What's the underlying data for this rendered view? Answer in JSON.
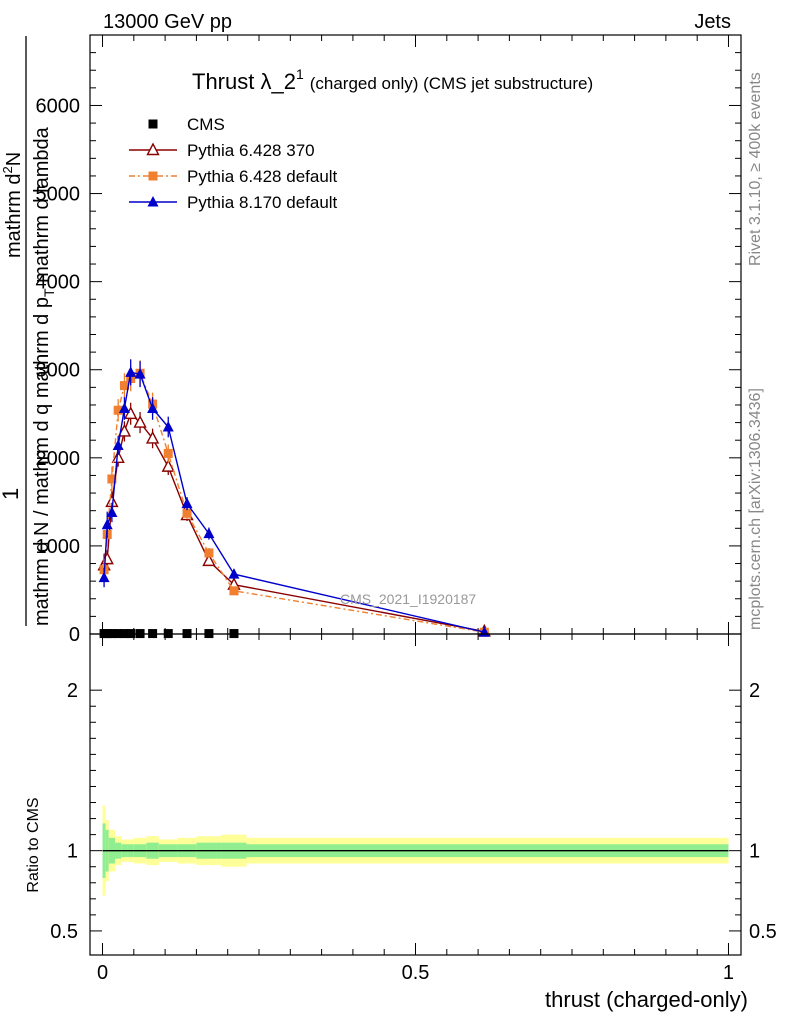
{
  "header": {
    "left": "13000 GeV pp",
    "right": "Jets"
  },
  "side_labels": {
    "rivet": "Rivet 3.1.10, ≥ 400k events",
    "mcplots": "mcplots.cern.ch [arXiv:1306.3436]"
  },
  "chart_data": [
    {
      "type": "line",
      "title": "Thrust λ_2",
      "title_superscript": "1",
      "title_suffix": "(charged only) (CMS jet substructure)",
      "watermark": "CMS_2021_I1920187",
      "ylabel_numerator": "1",
      "ylabel_den_part1": "mathrm d N / mathrm d q mathrm d p",
      "ylabel_den_sub": "T",
      "ylabel_den_part2": " mathrm d lambda",
      "ylabel_outer": "mathrm d",
      "ylabel_outer_sup": "2",
      "ylabel_outer_end": "N",
      "xlim": [
        -0.02,
        1.02
      ],
      "ylim": [
        0,
        6800
      ],
      "yticks": [
        0,
        1000,
        2000,
        3000,
        4000,
        5000,
        6000
      ],
      "ytick_labels": [
        "0",
        "1000",
        "2000",
        "3000",
        "4000",
        "5000",
        "6000"
      ],
      "grid": false,
      "legend_position": "top-left",
      "series": [
        {
          "name": "CMS",
          "color": "#000000",
          "marker": "square",
          "x": [
            0.0025,
            0.0075,
            0.015,
            0.025,
            0.035,
            0.045,
            0.06,
            0.08,
            0.105,
            0.135,
            0.17,
            0.21
          ],
          "y": [
            5,
            5,
            5,
            5,
            5,
            5,
            5,
            5,
            5,
            5,
            5,
            5
          ]
        },
        {
          "name": "Pythia 6.428 370",
          "color": "#8b0000",
          "marker": "open-triangle",
          "x": [
            0.0025,
            0.0075,
            0.015,
            0.025,
            0.035,
            0.045,
            0.06,
            0.08,
            0.105,
            0.135,
            0.17,
            0.21,
            0.61
          ],
          "y": [
            780,
            850,
            1500,
            2000,
            2300,
            2500,
            2400,
            2220,
            1900,
            1350,
            830,
            560,
            30
          ]
        },
        {
          "name": "Pythia 6.428 default",
          "color": "#f08030",
          "marker": "square",
          "x": [
            0.0025,
            0.0075,
            0.015,
            0.025,
            0.035,
            0.045,
            0.06,
            0.08,
            0.105,
            0.135,
            0.17,
            0.21,
            0.61
          ],
          "y": [
            730,
            1130,
            1760,
            2540,
            2820,
            2900,
            2960,
            2610,
            2050,
            1370,
            920,
            490,
            20
          ]
        },
        {
          "name": "Pythia 8.170 default",
          "color": "#0000cc",
          "marker": "filled-triangle",
          "x": [
            0.0025,
            0.0075,
            0.015,
            0.025,
            0.035,
            0.045,
            0.06,
            0.08,
            0.105,
            0.135,
            0.17,
            0.21,
            0.61
          ],
          "y": [
            640,
            1240,
            1380,
            2140,
            2560,
            2970,
            2950,
            2560,
            2350,
            1480,
            1140,
            680,
            20
          ]
        }
      ]
    },
    {
      "type": "area",
      "ylabel": "Ratio to CMS",
      "xlabel": "thrust (charged-only)",
      "xlim": [
        -0.02,
        1.02
      ],
      "ylim": [
        0.35,
        2.35
      ],
      "yticks": [
        0.5,
        1,
        2
      ],
      "ytick_labels": [
        "0.5",
        "1",
        "2"
      ],
      "xticks": [
        0,
        0.5,
        1
      ],
      "xtick_labels": [
        "0",
        "0.5",
        "1"
      ],
      "reference_line": 1,
      "bins": [
        0,
        0.005,
        0.01,
        0.02,
        0.03,
        0.04,
        0.05,
        0.07,
        0.09,
        0.12,
        0.15,
        0.19,
        0.23,
        1.0
      ],
      "band_inner_color": "#90ee90",
      "band_outer_color": "#ffff99",
      "band_inner_halfwidth": [
        0.17,
        0.13,
        0.08,
        0.05,
        0.04,
        0.04,
        0.04,
        0.05,
        0.04,
        0.04,
        0.05,
        0.05,
        0.04
      ],
      "band_outer_halfwidth": [
        0.28,
        0.19,
        0.13,
        0.09,
        0.07,
        0.07,
        0.08,
        0.09,
        0.07,
        0.08,
        0.09,
        0.1,
        0.08
      ]
    }
  ]
}
